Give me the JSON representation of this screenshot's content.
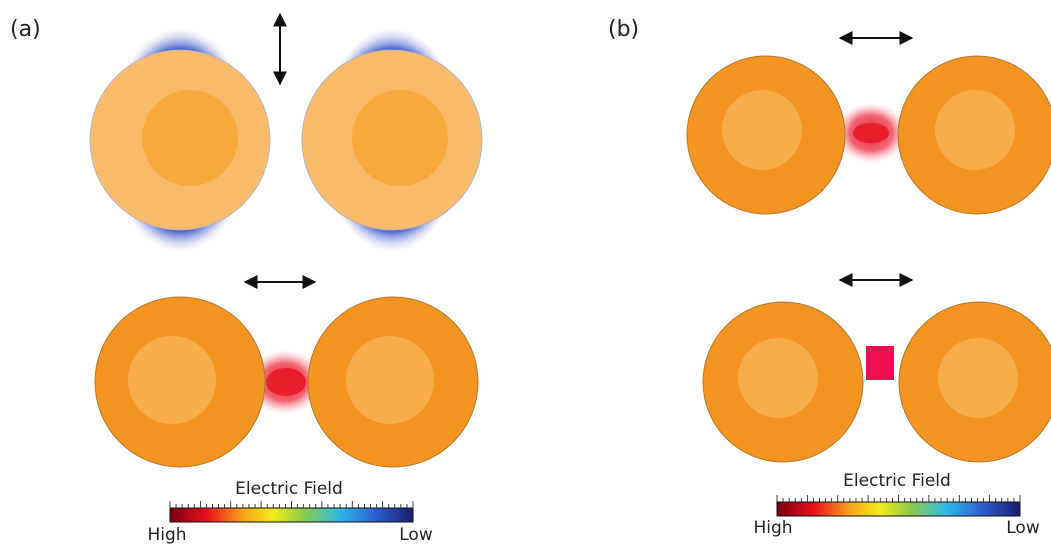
{
  "panels": [
    {
      "label": "(a)",
      "colorbar": {
        "title": "Electric Field",
        "high": "High",
        "low": "Low"
      }
    },
    {
      "label": "(b)",
      "colorbar": {
        "title": "Electric Field",
        "high": "High",
        "low": "Low"
      }
    }
  ]
}
